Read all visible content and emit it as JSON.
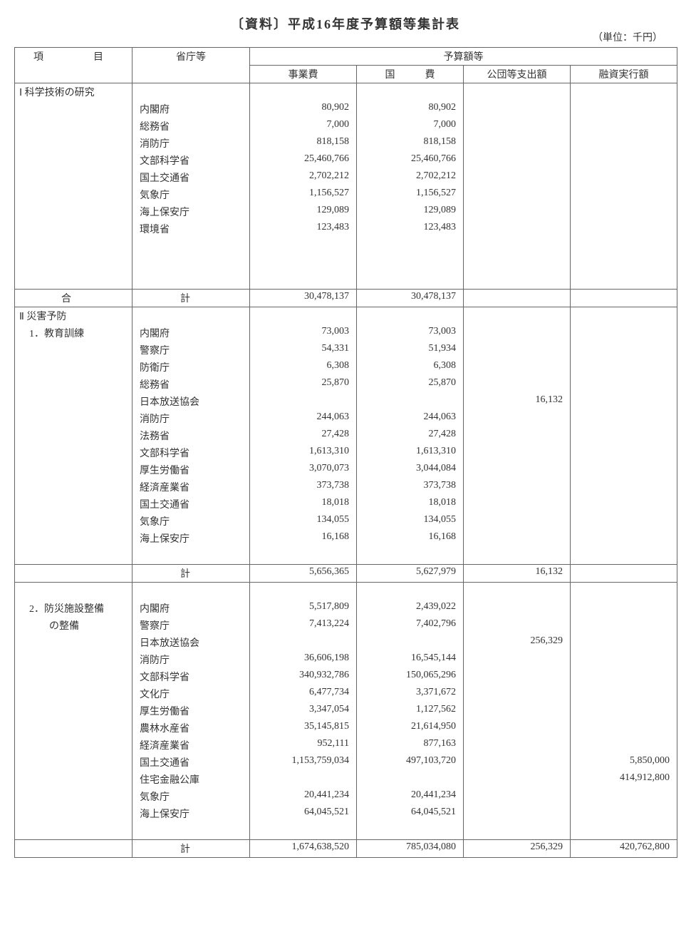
{
  "title": "〔資料〕平成16年度予算額等集計表",
  "unit": "（単位：千円）",
  "headers": {
    "item": "項　　目",
    "agency": "省庁等",
    "budget_group": "予算額等",
    "cost": "事業費",
    "national": "国　　　費",
    "corp": "公団等支出額",
    "finance": "融資実行額"
  },
  "sections": [
    {
      "header": "Ⅰ 科学技術の研究",
      "rows": [
        {
          "agency": "内閣府",
          "cost": "80,902",
          "national": "80,902",
          "corp": "",
          "finance": ""
        },
        {
          "agency": "総務省",
          "cost": "7,000",
          "national": "7,000",
          "corp": "",
          "finance": ""
        },
        {
          "agency": "消防庁",
          "cost": "818,158",
          "national": "818,158",
          "corp": "",
          "finance": ""
        },
        {
          "agency": "文部科学省",
          "cost": "25,460,766",
          "national": "25,460,766",
          "corp": "",
          "finance": ""
        },
        {
          "agency": "国土交通省",
          "cost": "2,702,212",
          "national": "2,702,212",
          "corp": "",
          "finance": ""
        },
        {
          "agency": "気象庁",
          "cost": "1,156,527",
          "national": "1,156,527",
          "corp": "",
          "finance": ""
        },
        {
          "agency": "海上保安庁",
          "cost": "129,089",
          "national": "129,089",
          "corp": "",
          "finance": ""
        },
        {
          "agency": "環境省",
          "cost": "123,483",
          "national": "123,483",
          "corp": "",
          "finance": ""
        }
      ],
      "blank_rows": 3,
      "total": {
        "label_item": "合",
        "label_agency": "計",
        "cost": "30,478,137",
        "national": "30,478,137",
        "corp": "",
        "finance": ""
      }
    },
    {
      "header": "Ⅱ 災害予防",
      "sub": "　1．教育訓練",
      "rows": [
        {
          "agency": "内閣府",
          "cost": "73,003",
          "national": "73,003",
          "corp": "",
          "finance": ""
        },
        {
          "agency": "警察庁",
          "cost": "54,331",
          "national": "51,934",
          "corp": "",
          "finance": ""
        },
        {
          "agency": "防衛庁",
          "cost": "6,308",
          "national": "6,308",
          "corp": "",
          "finance": ""
        },
        {
          "agency": "総務省",
          "cost": "25,870",
          "national": "25,870",
          "corp": "",
          "finance": ""
        },
        {
          "agency": "日本放送協会",
          "cost": "",
          "national": "",
          "corp": "16,132",
          "finance": ""
        },
        {
          "agency": "消防庁",
          "cost": "244,063",
          "national": "244,063",
          "corp": "",
          "finance": ""
        },
        {
          "agency": "法務省",
          "cost": "27,428",
          "national": "27,428",
          "corp": "",
          "finance": ""
        },
        {
          "agency": "文部科学省",
          "cost": "1,613,310",
          "national": "1,613,310",
          "corp": "",
          "finance": ""
        },
        {
          "agency": "厚生労働省",
          "cost": "3,070,073",
          "national": "3,044,084",
          "corp": "",
          "finance": ""
        },
        {
          "agency": "経済産業省",
          "cost": "373,738",
          "national": "373,738",
          "corp": "",
          "finance": ""
        },
        {
          "agency": "国土交通省",
          "cost": "18,018",
          "national": "18,018",
          "corp": "",
          "finance": ""
        },
        {
          "agency": "気象庁",
          "cost": "134,055",
          "national": "134,055",
          "corp": "",
          "finance": ""
        },
        {
          "agency": "海上保安庁",
          "cost": "16,168",
          "national": "16,168",
          "corp": "",
          "finance": ""
        }
      ],
      "blank_rows": 1,
      "total": {
        "label_item": "",
        "label_agency": "計",
        "cost": "5,656,365",
        "national": "5,627,979",
        "corp": "16,132",
        "finance": ""
      }
    },
    {
      "header": "",
      "sub": "　2．防災施設整備",
      "sub2": "　　　の整備",
      "lead_blank": 1,
      "rows": [
        {
          "agency": "内閣府",
          "cost": "5,517,809",
          "national": "2,439,022",
          "corp": "",
          "finance": ""
        },
        {
          "agency": "警察庁",
          "cost": "7,413,224",
          "national": "7,402,796",
          "corp": "",
          "finance": ""
        },
        {
          "agency": "日本放送協会",
          "cost": "",
          "national": "",
          "corp": "256,329",
          "finance": ""
        },
        {
          "agency": "消防庁",
          "cost": "36,606,198",
          "national": "16,545,144",
          "corp": "",
          "finance": ""
        },
        {
          "agency": "文部科学省",
          "cost": "340,932,786",
          "national": "150,065,296",
          "corp": "",
          "finance": ""
        },
        {
          "agency": "文化庁",
          "cost": "6,477,734",
          "national": "3,371,672",
          "corp": "",
          "finance": ""
        },
        {
          "agency": "厚生労働省",
          "cost": "3,347,054",
          "national": "1,127,562",
          "corp": "",
          "finance": ""
        },
        {
          "agency": "農林水産省",
          "cost": "35,145,815",
          "national": "21,614,950",
          "corp": "",
          "finance": ""
        },
        {
          "agency": "経済産業省",
          "cost": "952,111",
          "national": "877,163",
          "corp": "",
          "finance": ""
        },
        {
          "agency": "国土交通省",
          "cost": "1,153,759,034",
          "national": "497,103,720",
          "corp": "",
          "finance": "5,850,000"
        },
        {
          "agency": "住宅金融公庫",
          "cost": "",
          "national": "",
          "corp": "",
          "finance": "414,912,800"
        },
        {
          "agency": "気象庁",
          "cost": "20,441,234",
          "national": "20,441,234",
          "corp": "",
          "finance": ""
        },
        {
          "agency": "海上保安庁",
          "cost": "64,045,521",
          "national": "64,045,521",
          "corp": "",
          "finance": ""
        }
      ],
      "blank_rows": 1,
      "total": {
        "label_item": "",
        "label_agency": "計",
        "cost": "1,674,638,520",
        "national": "785,034,080",
        "corp": "256,329",
        "finance": "420,762,800"
      }
    }
  ]
}
